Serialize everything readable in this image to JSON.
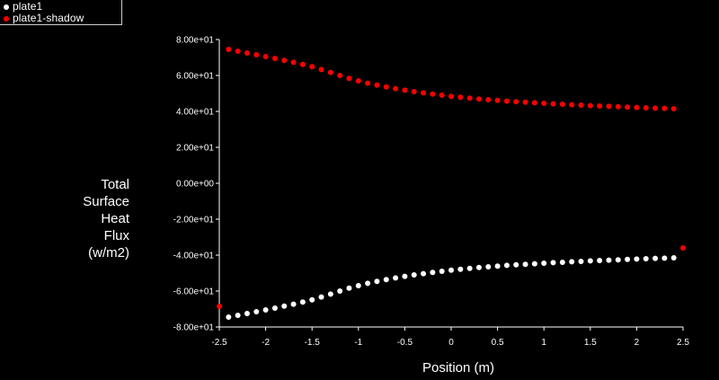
{
  "chart_data": {
    "type": "scatter",
    "xlabel": "Position (m)",
    "ylabel_lines": [
      "Total",
      "Surface",
      "Heat",
      "Flux",
      "(w/m2)"
    ],
    "xlim": [
      -2.5,
      2.5
    ],
    "ylim": [
      -80,
      80
    ],
    "grid": false,
    "legend_position": "top-left",
    "x_ticks": [
      "-2.5",
      "-2",
      "-1.5",
      "-1",
      "-0.5",
      "0",
      "0.5",
      "1",
      "1.5",
      "2",
      "2.5"
    ],
    "y_ticks": [
      "8.00e+01",
      "6.00e+01",
      "4.00e+01",
      "2.00e+01",
      "0.00e+00",
      "-2.00e+01",
      "-4.00e+01",
      "-6.00e+01",
      "-8.00e+01"
    ],
    "y_tick_values": [
      80,
      60,
      40,
      20,
      0,
      -20,
      -40,
      -60,
      -80
    ],
    "x_tick_values": [
      -2.5,
      -2,
      -1.5,
      -1,
      -0.5,
      0,
      0.5,
      1,
      1.5,
      2,
      2.5
    ],
    "series": [
      {
        "name": "plate1",
        "color": "#ffffff",
        "x": [
          -2.4,
          -2.3,
          -2.2,
          -2.1,
          -2.0,
          -1.9,
          -1.8,
          -1.7,
          -1.6,
          -1.5,
          -1.4,
          -1.3,
          -1.2,
          -1.1,
          -1.0,
          -0.9,
          -0.8,
          -0.7,
          -0.6,
          -0.5,
          -0.4,
          -0.3,
          -0.2,
          -0.1,
          0.0,
          0.1,
          0.2,
          0.3,
          0.4,
          0.5,
          0.6,
          0.7,
          0.8,
          0.9,
          1.0,
          1.1,
          1.2,
          1.3,
          1.4,
          1.5,
          1.6,
          1.7,
          1.8,
          1.9,
          2.0,
          2.1,
          2.2,
          2.3,
          2.4
        ],
        "y": [
          -74.5,
          -73.5,
          -72.5,
          -71.5,
          -70.5,
          -69.5,
          -68.4,
          -67.3,
          -66.1,
          -64.9,
          -63.3,
          -61.7,
          -60.0,
          -58.4,
          -57.0,
          -55.7,
          -54.6,
          -53.6,
          -52.7,
          -51.8,
          -51.0,
          -50.3,
          -49.6,
          -49.0,
          -48.4,
          -47.9,
          -47.4,
          -46.9,
          -46.5,
          -46.1,
          -45.7,
          -45.4,
          -45.1,
          -44.8,
          -44.5,
          -44.2,
          -44.0,
          -43.7,
          -43.5,
          -43.2,
          -43.0,
          -42.8,
          -42.6,
          -42.4,
          -42.2,
          -42.0,
          -41.8,
          -41.7,
          -41.5
        ]
      },
      {
        "name": "plate1-shadow",
        "color": "#ff0000",
        "x": [
          -2.4,
          -2.3,
          -2.2,
          -2.1,
          -2.0,
          -1.9,
          -1.8,
          -1.7,
          -1.6,
          -1.5,
          -1.4,
          -1.3,
          -1.2,
          -1.1,
          -1.0,
          -0.9,
          -0.8,
          -0.7,
          -0.6,
          -0.5,
          -0.4,
          -0.3,
          -0.2,
          -0.1,
          0.0,
          0.1,
          0.2,
          0.3,
          0.4,
          0.5,
          0.6,
          0.7,
          0.8,
          0.9,
          1.0,
          1.1,
          1.2,
          1.3,
          1.4,
          1.5,
          1.6,
          1.7,
          1.8,
          1.9,
          2.0,
          2.1,
          2.2,
          2.3,
          2.4
        ],
        "y": [
          74.5,
          73.5,
          72.5,
          71.5,
          70.5,
          69.5,
          68.4,
          67.3,
          66.1,
          64.9,
          63.3,
          61.7,
          60.0,
          58.4,
          57.0,
          55.7,
          54.6,
          53.6,
          52.7,
          51.8,
          51.0,
          50.3,
          49.6,
          49.0,
          48.4,
          47.9,
          47.4,
          46.9,
          46.5,
          46.1,
          45.7,
          45.4,
          45.1,
          44.8,
          44.5,
          44.2,
          44.0,
          43.7,
          43.5,
          43.2,
          43.0,
          42.8,
          42.6,
          42.4,
          42.2,
          42.0,
          41.8,
          41.7,
          41.5
        ]
      }
    ],
    "edge_markers": [
      {
        "x": -2.5,
        "y": -68.5,
        "color": "#ff0000"
      },
      {
        "x": 2.5,
        "y": -36.0,
        "color": "#ff0000"
      }
    ]
  }
}
